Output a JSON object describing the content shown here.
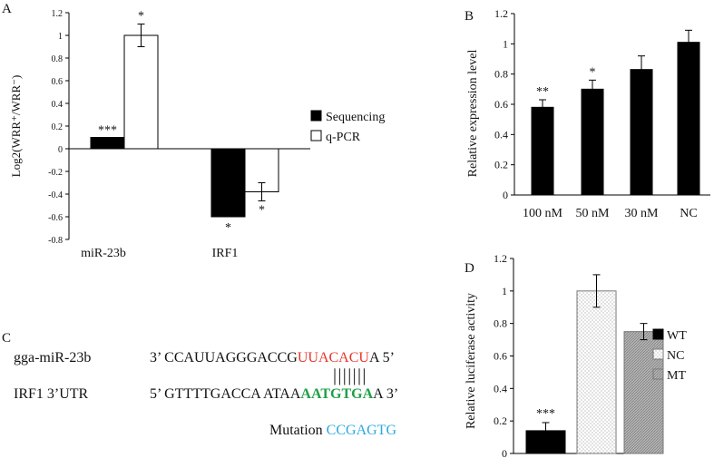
{
  "panels": {
    "a": "A",
    "b": "B",
    "c": "C",
    "d": "D"
  },
  "chart_data": [
    {
      "panel": "A",
      "type": "bar",
      "ylabel": "Log2(WRR⁺/WRR⁻)",
      "ylim": [
        -0.8,
        1.2
      ],
      "yticks": [
        "1.2",
        "1",
        "0.8",
        "0.6",
        "0.4",
        "0.2",
        "0",
        "-0.2",
        "-0.4",
        "-0.6",
        "-0.8"
      ],
      "categories": [
        "miR-23b",
        "IRF1"
      ],
      "series": [
        {
          "name": "Sequencing",
          "color": "#000000",
          "values": [
            0.1,
            -0.6
          ],
          "significance": [
            "***",
            "*"
          ]
        },
        {
          "name": "q-PCR",
          "color": "#ffffff",
          "values": [
            1.0,
            -0.38
          ],
          "errors": [
            0.1,
            0.08
          ],
          "significance": [
            "*",
            "*"
          ]
        }
      ],
      "legend": "right"
    },
    {
      "panel": "B",
      "type": "bar",
      "ylabel": "Relative expression level",
      "ylim": [
        0,
        1.2
      ],
      "yticks": [
        "1.2",
        "1",
        "0.8",
        "0.6",
        "0.4",
        "0.2",
        "0"
      ],
      "categories": [
        "100 nM",
        "50 nM",
        "30 nM",
        "NC"
      ],
      "values": [
        0.58,
        0.7,
        0.83,
        1.01
      ],
      "errors": [
        0.05,
        0.06,
        0.09,
        0.08
      ],
      "significance": [
        "**",
        "*",
        "",
        ""
      ],
      "color": "#000000"
    },
    {
      "panel": "D",
      "type": "bar",
      "ylabel": "Relative luciferase activity",
      "ylim": [
        0,
        1.2
      ],
      "yticks": [
        "1.2",
        "1",
        "0.8",
        "0.6",
        "0.4",
        "0.2",
        "0"
      ],
      "categories": [
        "WT",
        "NC",
        "MT"
      ],
      "values": [
        0.14,
        1.0,
        0.75
      ],
      "errors": [
        0.05,
        0.1,
        0.05
      ],
      "significance": [
        "***",
        "",
        ""
      ],
      "legend": [
        "WT",
        "NC",
        "MT"
      ]
    }
  ],
  "sequence": {
    "mirna_label": "gga-miR-23b",
    "mirna_prefix": "3’ CCAUUAGGGACCG",
    "mirna_seed": "UUACACU",
    "mirna_suffix": "A  5’",
    "pairing": "| | | | | | |",
    "utr_label": "IRF1 3’UTR",
    "utr_prefix": "5’ GTTTTGACCA ATAA",
    "utr_site": "AATGTGA",
    "utr_suffix": "A 3’",
    "mutation_label": "Mutation",
    "mutation_seq": "CCGAGTG"
  }
}
